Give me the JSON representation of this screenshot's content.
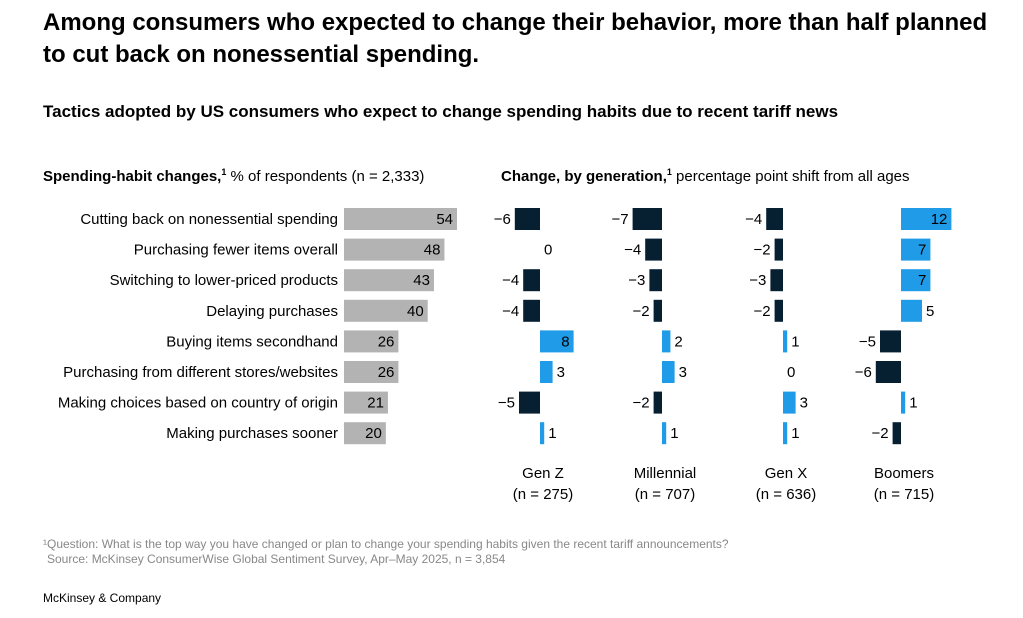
{
  "headline": "Among consumers who expected to change their behavior, more than half planned to cut back on nonessential spending.",
  "subtitle": "Tactics adopted by US consumers who expect to change spending habits due to recent tariff news",
  "left_panel": {
    "title": "Spending-habit changes,",
    "title_sup": "1",
    "title_rest": " % of respondents (n = 2,333)"
  },
  "right_panel": {
    "title": "Change, by generation,",
    "title_sup": "1",
    "title_rest": " percentage point shift from all ages"
  },
  "colors": {
    "gray_bar": "#b3b3b3",
    "positive": "#1f9be8",
    "negative": "#061f31"
  },
  "chart_data": [
    {
      "type": "bar",
      "orientation": "horizontal",
      "categories": [
        "Cutting back on nonessential spending",
        "Purchasing fewer items overall",
        "Switching to lower-priced products",
        "Delaying purchases",
        "Buying items secondhand",
        "Purchasing from different stores/websites",
        "Making choices based on country of origin",
        "Making purchases sooner"
      ],
      "values": [
        54,
        48,
        43,
        40,
        26,
        26,
        21,
        20
      ]
    },
    {
      "type": "bar",
      "orientation": "horizontal",
      "diverging": true,
      "categories": [
        "Cutting back on nonessential spending",
        "Purchasing fewer items overall",
        "Switching to lower-priced products",
        "Delaying purchases",
        "Buying items secondhand",
        "Purchasing from different stores/websites",
        "Making choices based on country of origin",
        "Making purchases sooner"
      ],
      "series": [
        {
          "name": "Gen Z",
          "n_label": "(n = 275)",
          "values": [
            -6,
            0,
            -4,
            -4,
            8,
            3,
            -5,
            1
          ]
        },
        {
          "name": "Millennial",
          "n_label": "(n = 707)",
          "values": [
            -7,
            -4,
            -3,
            -2,
            2,
            3,
            -2,
            1
          ]
        },
        {
          "name": "Gen X",
          "n_label": "(n = 636)",
          "values": [
            -4,
            -2,
            -3,
            -2,
            1,
            0,
            3,
            1
          ]
        },
        {
          "name": "Boomers",
          "n_label": "(n = 715)",
          "values": [
            12,
            7,
            7,
            5,
            -5,
            -6,
            1,
            -2
          ]
        }
      ]
    }
  ],
  "footnote": "¹Question: What is the top way you have changed or plan to change your spending habits given the recent tariff announcements?",
  "source": "Source: McKinsey ConsumerWise Global Sentiment Survey, Apr–May 2025, n = 3,854",
  "brand": "McKinsey & Company"
}
